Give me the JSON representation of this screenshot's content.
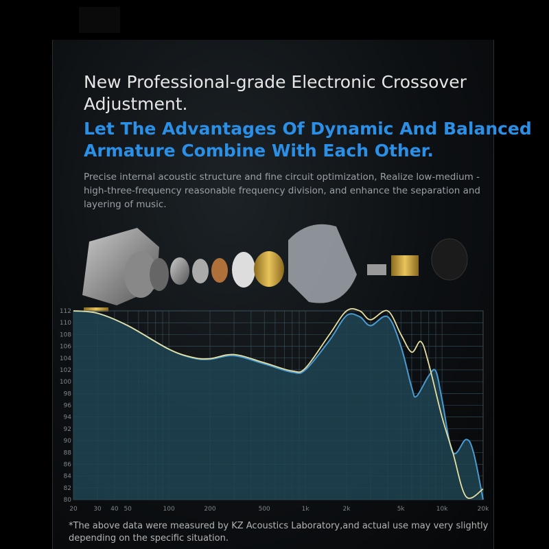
{
  "heading": {
    "title_line1": "New Professional-grade Electronic Crossover",
    "title_line2": "Adjustment.",
    "subtitle_line1": "Let The Advantages Of Dynamic And Balanced",
    "subtitle_line2": "Armature Combine With Each Other.",
    "description": "Precise internal acoustic structure and fine circuit optimization, Realize low-medium -high-three-frequency reasonable frequency division, and enhance the separation and layering of music."
  },
  "footnote": "*The above data were measured by KZ Acoustics Laboratory,and actual use may very slightly depending on the specific situation.",
  "colors": {
    "subtitle": "#2c8fe6",
    "blue_curve": "#4a9bd1",
    "yellow_curve": "#e8e0a0",
    "fill": "#1f4452"
  },
  "chart_data": {
    "type": "line",
    "xscale": "log",
    "xlim": [
      20,
      20000
    ],
    "ylim": [
      80,
      112
    ],
    "grid": true,
    "x_tick_labels": [
      "20",
      "30",
      "40",
      "50",
      "100",
      "200",
      "500",
      "1k",
      "2k",
      "5k",
      "10k",
      "20k"
    ],
    "x_tick_values": [
      20,
      30,
      40,
      50,
      100,
      200,
      500,
      1000,
      2000,
      5000,
      10000,
      20000
    ],
    "y_tick_labels": [
      "112",
      "110",
      "108",
      "106",
      "104",
      "102",
      "100",
      "98",
      "96",
      "94",
      "92",
      "90",
      "88",
      "86",
      "84",
      "82",
      "80"
    ],
    "series": [
      {
        "color": "blue",
        "filled": true,
        "x": [
          20,
          30,
          50,
          100,
          150,
          200,
          300,
          500,
          800,
          1000,
          1500,
          2000,
          2500,
          3000,
          4000,
          5000,
          6000,
          6500,
          8000,
          9000,
          10000,
          12000,
          15000,
          17000,
          20000
        ],
        "y": [
          112,
          111.6,
          109.5,
          105.5,
          104,
          103.8,
          104.4,
          103,
          101.6,
          102,
          107,
          111.2,
          111,
          109.5,
          111,
          106,
          99,
          97.5,
          101,
          101.8,
          97,
          88,
          90.2,
          88,
          80
        ]
      },
      {
        "color": "yellow",
        "filled": false,
        "x": [
          20,
          30,
          50,
          100,
          150,
          200,
          300,
          500,
          800,
          1000,
          1500,
          2000,
          2500,
          3000,
          4000,
          5000,
          6000,
          7000,
          8000,
          10000,
          12000,
          15000,
          20000
        ],
        "y": [
          112,
          111.6,
          109.5,
          105.5,
          104.1,
          103.9,
          104.6,
          103.2,
          101.8,
          102.3,
          108,
          112,
          112,
          110.5,
          112.6,
          108,
          105,
          106.8,
          103,
          94,
          88,
          80.5,
          81.8
        ]
      }
    ]
  }
}
